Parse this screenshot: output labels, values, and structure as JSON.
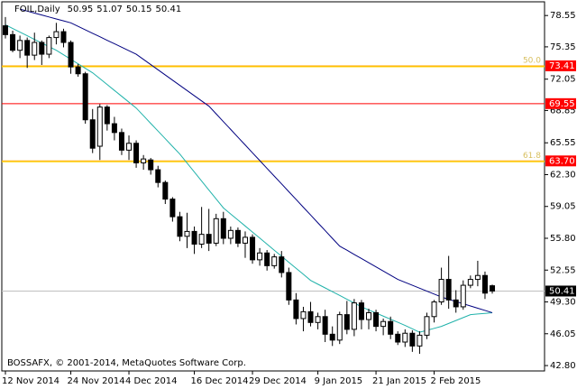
{
  "chart_data": {
    "type": "candlestick",
    "title": "FOIL,Daily",
    "credit": "BOSSAFX, © 2001-2014, MetaQuotes Software Corp.",
    "categories": [
      "12 Nov 2014",
      null,
      null,
      null,
      null,
      null,
      null,
      null,
      null,
      "24 Nov 2014",
      null,
      null,
      null,
      null,
      null,
      null,
      null,
      "4 Dec 2014",
      null,
      null,
      null,
      null,
      null,
      null,
      null,
      null,
      "16 Dec 2014",
      null,
      null,
      null,
      null,
      null,
      null,
      null,
      "29 Dec 2014",
      null,
      null,
      null,
      null,
      null,
      null,
      null,
      null,
      "9 Jan 2015",
      null,
      null,
      null,
      null,
      null,
      null,
      null,
      "21 Jan 2015",
      null,
      null,
      null,
      null,
      null,
      null,
      null,
      "2 Feb 2015",
      null,
      null,
      null,
      null,
      null,
      null,
      null,
      null
    ],
    "open": [
      77.5,
      76.6,
      75.0,
      76.0,
      74.5,
      75.8,
      74.6,
      76.3,
      76.9,
      75.8,
      73.3,
      72.6,
      67.9,
      65.2,
      69.2,
      67.5,
      66.6,
      64.8,
      65.5,
      63.5,
      63.8,
      62.8,
      61.5,
      59.8,
      58.0,
      56.0,
      56.5,
      55.2,
      56.2,
      55.3,
      57.8,
      55.8,
      56.6,
      55.3,
      55.9,
      53.6,
      54.3,
      53.0,
      53.9,
      52.3,
      49.5,
      47.6,
      48.3,
      47.2,
      47.8,
      46.0,
      45.4,
      48.0,
      46.5,
      49.2,
      47.5,
      48.2,
      46.8,
      47.3,
      46.0,
      45.2,
      46.1,
      44.8,
      45.9,
      47.8,
      49.3,
      51.6,
      49.5,
      48.8,
      51.0,
      51.6,
      52.0,
      50.95
    ],
    "high": [
      78.4,
      77.0,
      76.5,
      76.3,
      76.8,
      76.0,
      76.5,
      77.8,
      77.2,
      76.0,
      73.6,
      72.8,
      69.0,
      69.5,
      69.4,
      68.2,
      67.0,
      66.3,
      65.8,
      64.3,
      64.0,
      63.2,
      61.7,
      60.0,
      58.5,
      58.4,
      57.0,
      59.0,
      58.8,
      58.3,
      58.5,
      57.0,
      56.9,
      56.5,
      56.2,
      54.8,
      54.6,
      54.2,
      54.5,
      52.8,
      50.2,
      48.8,
      49.3,
      48.2,
      48.5,
      46.8,
      48.3,
      49.4,
      49.6,
      49.5,
      48.6,
      48.5,
      47.6,
      47.8,
      46.3,
      46.5,
      46.4,
      46.3,
      48.2,
      49.5,
      52.8,
      54.0,
      50.5,
      51.5,
      52.0,
      53.5,
      52.4,
      51.07
    ],
    "low": [
      76.2,
      74.8,
      74.2,
      73.2,
      74.0,
      73.5,
      74.2,
      75.6,
      75.3,
      72.6,
      72.3,
      67.5,
      64.5,
      63.8,
      66.8,
      65.8,
      64.3,
      63.8,
      63.0,
      62.8,
      62.3,
      61.0,
      59.3,
      57.5,
      55.5,
      54.8,
      54.2,
      54.8,
      54.5,
      55.0,
      55.2,
      55.2,
      54.9,
      53.8,
      53.2,
      53.0,
      52.5,
      52.7,
      51.8,
      49.0,
      47.0,
      46.3,
      46.8,
      46.5,
      45.2,
      44.8,
      45.0,
      46.0,
      45.8,
      46.5,
      46.5,
      46.3,
      45.9,
      45.5,
      44.9,
      44.7,
      44.2,
      44.0,
      45.5,
      47.2,
      49.0,
      48.6,
      48.2,
      48.5,
      50.7,
      50.9,
      49.6,
      50.15
    ],
    "close": [
      76.6,
      75.0,
      76.0,
      74.5,
      75.8,
      74.6,
      76.3,
      76.9,
      75.8,
      73.3,
      72.6,
      67.9,
      65.0,
      69.2,
      67.5,
      66.6,
      64.8,
      65.5,
      63.5,
      63.9,
      62.8,
      61.5,
      59.8,
      58.0,
      56.0,
      56.5,
      55.2,
      56.2,
      55.3,
      57.8,
      55.8,
      56.6,
      55.3,
      55.9,
      53.6,
      54.3,
      53.0,
      53.9,
      52.3,
      49.5,
      47.6,
      48.3,
      47.2,
      47.8,
      46.0,
      45.4,
      48.0,
      46.5,
      49.2,
      47.5,
      48.2,
      46.8,
      47.3,
      46.0,
      45.2,
      46.1,
      44.8,
      45.9,
      47.8,
      49.3,
      51.6,
      49.5,
      48.8,
      51.0,
      51.6,
      52.0,
      50.2,
      50.41
    ],
    "bull_color": "#ffffff",
    "bear_color": "#000000",
    "moving_averages": [
      {
        "color": "#20b2aa",
        "values": [
          77.6,
          77.23,
          76.86,
          76.49,
          76.11,
          75.74,
          75.37,
          75.0,
          74.54,
          74.08,
          73.62,
          73.16,
          72.7,
          72.1,
          71.5,
          70.9,
          70.3,
          69.7,
          69.1,
          68.32,
          67.53,
          66.75,
          65.97,
          65.18,
          64.4,
          63.48,
          62.57,
          61.65,
          60.73,
          59.82,
          58.9,
          58.28,
          57.67,
          57.05,
          56.43,
          55.82,
          55.2,
          54.58,
          53.97,
          53.35,
          52.73,
          52.12,
          51.5,
          51.11,
          50.73,
          50.34,
          49.96,
          49.57,
          49.19,
          48.8,
          48.48,
          48.17,
          47.85,
          47.53,
          47.22,
          46.9,
          46.55,
          46.2,
          46.4,
          46.6,
          46.8,
          47.1,
          47.4,
          47.7,
          48.0,
          48.07,
          48.13,
          48.2
        ]
      },
      {
        "color": "#000080",
        "values": [
          null,
          null,
          79.2,
          79.0,
          78.8,
          78.6,
          78.4,
          78.2,
          78.0,
          77.8,
          77.44,
          77.09,
          76.73,
          76.38,
          76.02,
          75.67,
          75.31,
          74.96,
          74.6,
          74.07,
          73.54,
          73.01,
          72.48,
          71.95,
          71.42,
          70.89,
          70.36,
          69.83,
          69.3,
          68.51,
          67.71,
          66.92,
          66.12,
          65.33,
          64.53,
          63.74,
          62.94,
          62.15,
          61.36,
          60.56,
          59.77,
          58.97,
          58.18,
          57.38,
          56.59,
          55.79,
          55.0,
          54.58,
          54.15,
          53.73,
          53.3,
          52.88,
          52.45,
          52.03,
          51.6,
          51.3,
          51.0,
          50.7,
          50.4,
          50.1,
          49.8,
          49.57,
          49.34,
          49.11,
          48.89,
          48.66,
          48.43,
          48.2
        ]
      }
    ],
    "levels": [
      {
        "value": 73.41,
        "note": "50.0",
        "color": "#ffa500"
      },
      {
        "value": 69.55,
        "color": "#ff0000"
      },
      {
        "value": 63.7,
        "label": "63.70",
        "note": "61.8",
        "color": "#ffa500"
      }
    ],
    "ylim": [
      42.25,
      79.95
    ],
    "yticks": [
      78.55,
      75.35,
      72.05,
      68.85,
      65.55,
      {
        "value": 62.3,
        "label": "62.30"
      },
      59.05,
      {
        "value": 55.8,
        "label": "55.80"
      },
      52.55,
      {
        "value": 49.3,
        "label": "49.30"
      },
      46.05,
      {
        "value": 42.8,
        "label": "42.80"
      }
    ]
  }
}
